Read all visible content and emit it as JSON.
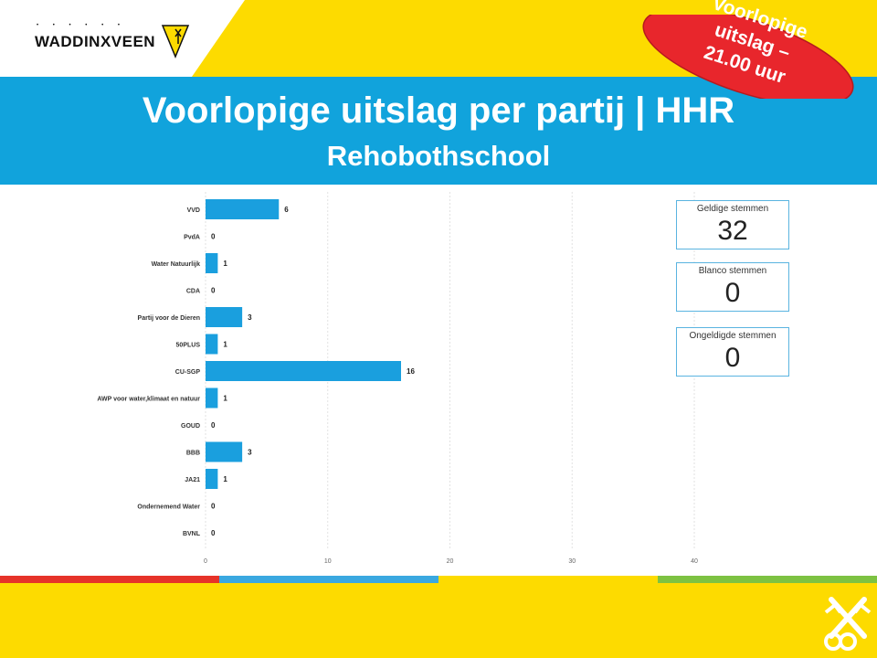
{
  "header": {
    "logo_text": "WADDINXVEEN",
    "logo_dots": "• • • • • •"
  },
  "banner": {
    "title": "Voorlopige uitslag per partij | HHR",
    "subtitle": "Rehobothschool"
  },
  "badge": {
    "line1": "Voorlopige",
    "line2": "uitslag –",
    "line3": "21.00 uur"
  },
  "kpis": [
    {
      "label": "Geldige stemmen",
      "value": "32"
    },
    {
      "label": "Blanco stemmen",
      "value": "0"
    },
    {
      "label": "Ongeldigde stemmen",
      "value": "0"
    }
  ],
  "colors": {
    "brand_yellow": "#fddb00",
    "banner_blue": "#11a3dc",
    "bar_blue": "#1a9fde",
    "badge_red": "#e8262c",
    "stripe_red": "#e63329",
    "stripe_blue": "#3aa8e0",
    "stripe_yellow": "#fddb00",
    "stripe_green": "#7dc242"
  },
  "chart_data": {
    "type": "bar",
    "orientation": "horizontal",
    "categories": [
      "VVD",
      "PvdA",
      "Water Natuurlijk",
      "CDA",
      "Partij voor de Dieren",
      "50PLUS",
      "CU-SGP",
      "AWP voor water,klimaat en natuur",
      "GOUD",
      "BBB",
      "JA21",
      "Ondernemend Water",
      "BVNL"
    ],
    "values": [
      6,
      0,
      1,
      0,
      3,
      1,
      16,
      1,
      0,
      3,
      1,
      0,
      0
    ],
    "xlim": [
      0,
      40
    ],
    "xticks": [
      0,
      10,
      20,
      30,
      40
    ],
    "grid": true,
    "data_labels": true
  }
}
